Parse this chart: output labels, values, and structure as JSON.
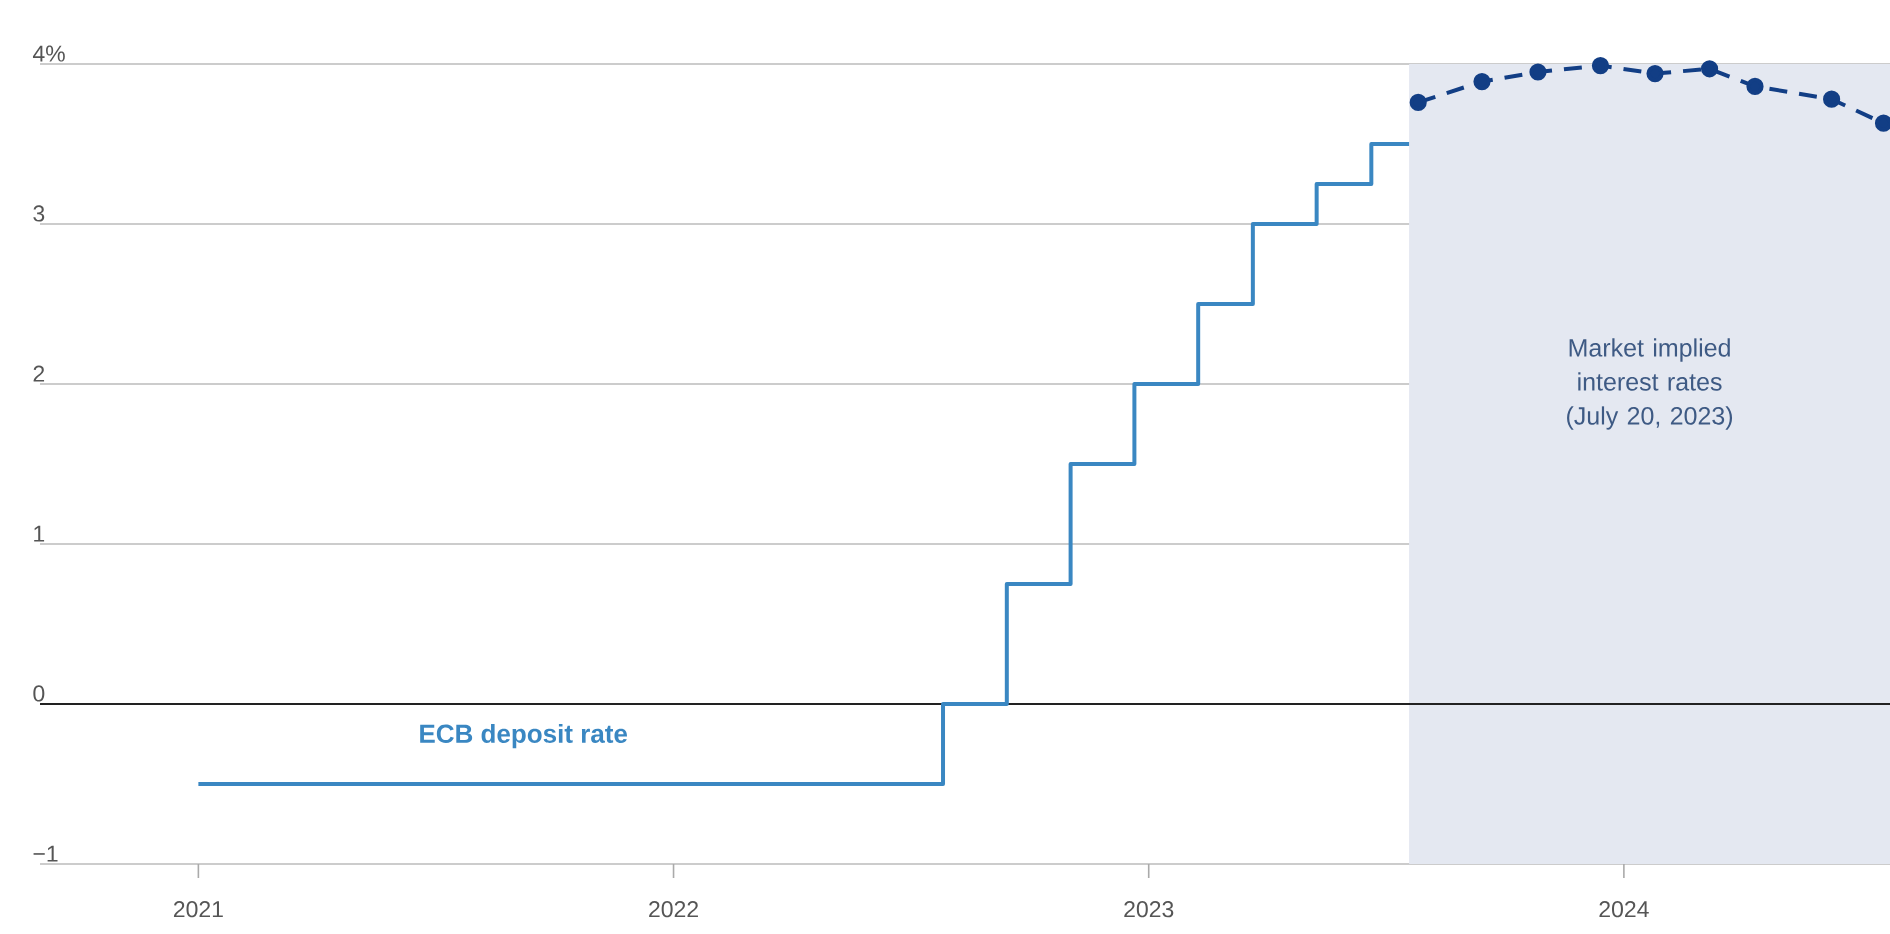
{
  "chart_data": {
    "type": "line",
    "series": [
      {
        "name": "ECB deposit rate",
        "type": "step",
        "color": "#3a87c2",
        "marker": "none",
        "line_style": "solid",
        "x": [
          "2021-01-01",
          "2022-07-27",
          "2022-09-14",
          "2022-11-02",
          "2022-12-21",
          "2023-02-08",
          "2023-03-22",
          "2023-05-10",
          "2023-06-21",
          "2023-07-20"
        ],
        "values": [
          -0.5,
          0,
          0.75,
          1.5,
          2,
          2.5,
          3,
          3.25,
          3.5,
          3.5
        ]
      },
      {
        "color": "#123e85",
        "marker": "circle",
        "line_style": "dashed",
        "x": [
          "2023-07-27",
          "2023-09-14",
          "2023-10-27",
          "2023-12-14",
          "2024-01-25",
          "2024-03-07",
          "2024-04-11",
          "2024-06-09",
          "2024-07-19"
        ],
        "values": [
          3.76,
          3.89,
          3.95,
          3.99,
          3.94,
          3.97,
          3.86,
          3.78,
          3.63
        ]
      }
    ],
    "xlim": [
      "2020-09-01",
      "2024-07-24"
    ],
    "xticks": [
      "2021",
      "2022",
      "2023",
      "2024"
    ],
    "ylim": [
      -1,
      4
    ],
    "yticks": [
      {
        "value": -1,
        "label": "−1"
      },
      0,
      1,
      2,
      3,
      {
        "value": 4,
        "label": "4%"
      }
    ],
    "grid": "y",
    "ref_lines": [
      {
        "axis": "y",
        "value": 0,
        "color": "#222222"
      }
    ],
    "bands": [
      {
        "axis": "x",
        "from": "2023-07-20",
        "to": "2024-07-24",
        "label": "Market implied interest rates (July 20, 2023)",
        "color": "#e4e8f1"
      }
    ]
  }
}
